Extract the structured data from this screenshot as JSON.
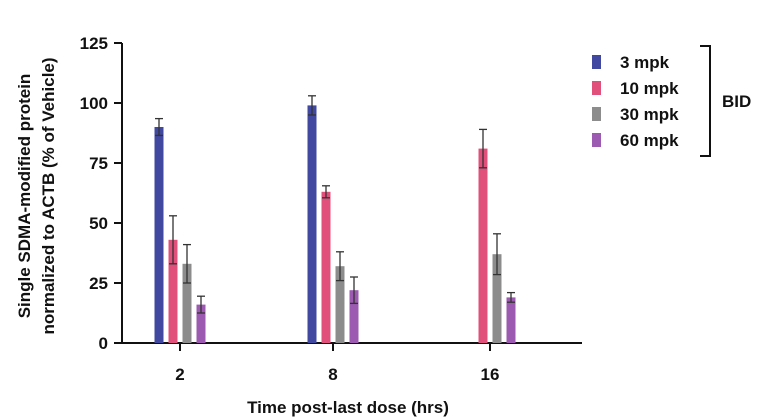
{
  "chart_data": {
    "type": "bar",
    "ylabel_line1": "Single SDMA-modified protein",
    "ylabel_line2": "normalized to ACTB (% of Vehicle)",
    "xlabel": "Time post-last dose (hrs)",
    "ylim": [
      0,
      125
    ],
    "yticks": [
      0,
      25,
      50,
      75,
      100,
      125
    ],
    "categories": [
      "2",
      "8",
      "16"
    ],
    "series": [
      {
        "name": "3 mpk",
        "color": "#4048a0",
        "values": [
          90,
          99,
          null
        ],
        "errors": [
          3.5,
          4,
          null
        ]
      },
      {
        "name": "10 mpk",
        "color": "#e0507a",
        "values": [
          43,
          63,
          81
        ],
        "errors": [
          10,
          2.5,
          8
        ]
      },
      {
        "name": "30 mpk",
        "color": "#8c8c8c",
        "values": [
          33,
          32,
          37
        ],
        "errors": [
          8,
          6,
          8.5
        ]
      },
      {
        "name": "60 mpk",
        "color": "#9c5ab0",
        "values": [
          16,
          22,
          19
        ],
        "errors": [
          3.5,
          5.5,
          2
        ]
      }
    ],
    "legend_group_label": "BID",
    "legend_position": "top-right",
    "grid": false
  }
}
